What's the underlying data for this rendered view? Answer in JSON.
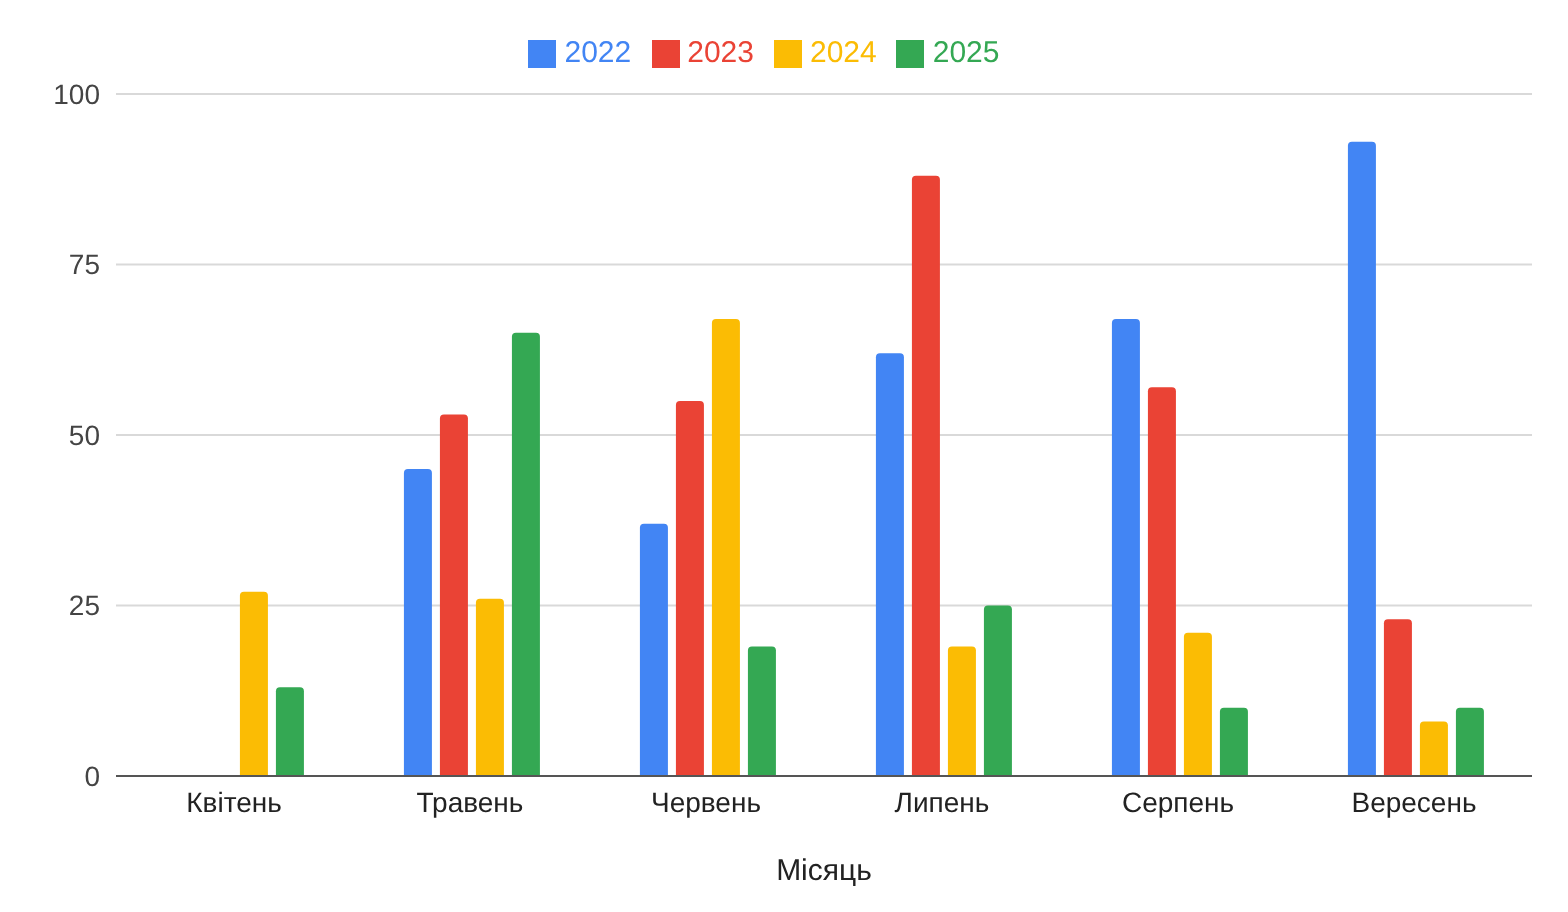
{
  "chart_data": {
    "type": "bar",
    "xlabel": "Місяць",
    "categories": [
      "Квітень",
      "Травень",
      "Червень",
      "Липень",
      "Серпень",
      "Вересень"
    ],
    "series": [
      {
        "name": "2022",
        "color": "#4285f4",
        "values": [
          null,
          45,
          37,
          62,
          67,
          93
        ]
      },
      {
        "name": "2023",
        "color": "#ea4335",
        "values": [
          null,
          53,
          55,
          88,
          57,
          23
        ]
      },
      {
        "name": "2024",
        "color": "#fbbc04",
        "values": [
          27,
          26,
          67,
          19,
          21,
          8
        ]
      },
      {
        "name": "2025",
        "color": "#34a853",
        "values": [
          13,
          65,
          19,
          25,
          10,
          10
        ]
      }
    ],
    "ylim": [
      0,
      100
    ],
    "yticks": [
      0,
      25,
      50,
      75,
      100
    ],
    "grid": "y",
    "legend": "top"
  }
}
